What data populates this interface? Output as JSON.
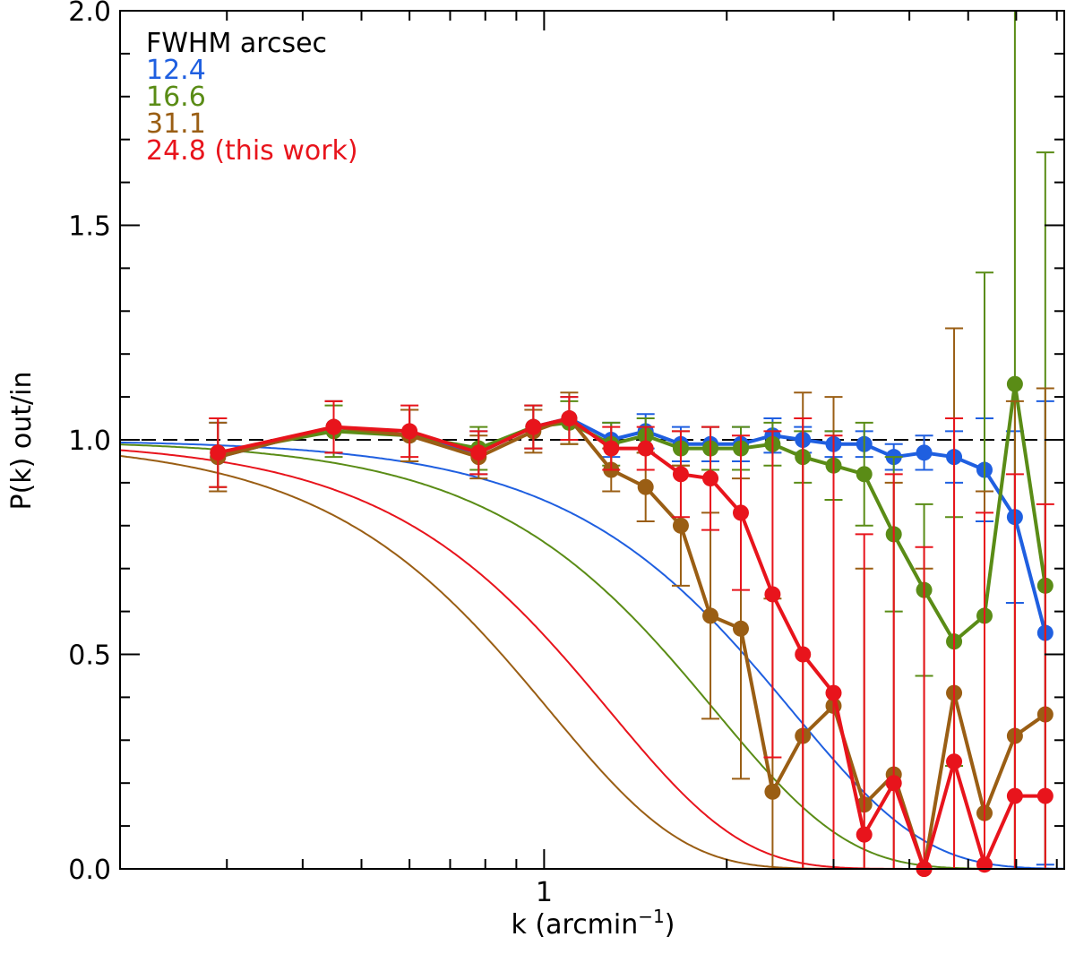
{
  "chart_data": {
    "type": "line",
    "xscale": "log",
    "xlim": [
      0.2,
      7.2
    ],
    "ylim": [
      0.0,
      2.0
    ],
    "xlabel_main": "k (arcmin",
    "xlabel_sup": "−1",
    "xlabel_close": ")",
    "ylabel": "P(k) out/in",
    "x_tick_labels": [
      "1"
    ],
    "y_tick_labels": [
      "0.0",
      "0.5",
      "1.0",
      "1.5",
      "2.0"
    ],
    "y_ticks": [
      0.0,
      0.5,
      1.0,
      1.5,
      2.0
    ],
    "reference_line": 1.0,
    "legend": {
      "title": "FWHM arcsec",
      "entries": [
        {
          "label": "12.4",
          "color": "#1f5fe0"
        },
        {
          "label": "16.6",
          "color": "#5a8c16"
        },
        {
          "label": "31.1",
          "color": "#9a5e14"
        },
        {
          "label": "24.8 (this work)",
          "color": "#e8141c"
        }
      ]
    },
    "series": [
      {
        "name": "12.4",
        "color": "#1f5fe0",
        "fwhm": 12.4,
        "points": [
          [
            0.29,
            0.96,
            0.08
          ],
          [
            0.45,
            1.03,
            0.06
          ],
          [
            0.6,
            1.01,
            0.06
          ],
          [
            0.78,
            0.97,
            0.05
          ],
          [
            0.96,
            1.03,
            0.05
          ],
          [
            1.1,
            1.05,
            0.05
          ],
          [
            1.29,
            1.0,
            0.04
          ],
          [
            1.47,
            1.02,
            0.04
          ],
          [
            1.68,
            0.99,
            0.04
          ],
          [
            1.88,
            0.99,
            0.04
          ],
          [
            2.11,
            0.99,
            0.04
          ],
          [
            2.38,
            1.01,
            0.04
          ],
          [
            2.67,
            1.0,
            0.03
          ],
          [
            3.0,
            0.99,
            0.03
          ],
          [
            3.37,
            0.99,
            0.03
          ],
          [
            3.77,
            0.96,
            0.03
          ],
          [
            4.23,
            0.97,
            0.04
          ],
          [
            4.74,
            0.96,
            0.06
          ],
          [
            5.32,
            0.93,
            0.12
          ],
          [
            5.97,
            0.82,
            0.2
          ],
          [
            6.7,
            0.55,
            0.54
          ]
        ]
      },
      {
        "name": "16.6",
        "color": "#5a8c16",
        "fwhm": 16.6,
        "points": [
          [
            0.29,
            0.97,
            0.08
          ],
          [
            0.45,
            1.02,
            0.06
          ],
          [
            0.6,
            1.01,
            0.06
          ],
          [
            0.78,
            0.98,
            0.05
          ],
          [
            0.96,
            1.03,
            0.05
          ],
          [
            1.1,
            1.04,
            0.05
          ],
          [
            1.29,
            0.99,
            0.05
          ],
          [
            1.47,
            1.01,
            0.04
          ],
          [
            1.68,
            0.98,
            0.04
          ],
          [
            1.88,
            0.98,
            0.05
          ],
          [
            2.11,
            0.98,
            0.05
          ],
          [
            2.38,
            0.99,
            0.05
          ],
          [
            2.67,
            0.96,
            0.06
          ],
          [
            3.0,
            0.94,
            0.08
          ],
          [
            3.37,
            0.92,
            0.12
          ],
          [
            3.77,
            0.78,
            0.18
          ],
          [
            4.23,
            0.65,
            0.2
          ],
          [
            4.74,
            0.53,
            0.29
          ],
          [
            5.32,
            0.59,
            0.8
          ],
          [
            5.97,
            1.13,
            1.4
          ],
          [
            6.7,
            0.66,
            1.01
          ]
        ]
      },
      {
        "name": "31.1",
        "color": "#9a5e14",
        "fwhm": 31.1,
        "points": [
          [
            0.29,
            0.96,
            0.08
          ],
          [
            0.45,
            1.03,
            0.06
          ],
          [
            0.6,
            1.01,
            0.06
          ],
          [
            0.78,
            0.96,
            0.05
          ],
          [
            0.96,
            1.02,
            0.05
          ],
          [
            1.1,
            1.05,
            0.06
          ],
          [
            1.29,
            0.93,
            0.05
          ],
          [
            1.47,
            0.89,
            0.08
          ],
          [
            1.68,
            0.8,
            0.14
          ],
          [
            1.88,
            0.59,
            0.24
          ],
          [
            2.11,
            0.56,
            0.35
          ],
          [
            2.38,
            0.18,
            0.45
          ],
          [
            2.67,
            0.31,
            0.8
          ],
          [
            3.0,
            0.38,
            0.72
          ],
          [
            3.37,
            0.15,
            0.55
          ],
          [
            3.77,
            0.22,
            0.68
          ],
          [
            4.23,
            0.0,
            0.7
          ],
          [
            4.74,
            0.41,
            0.85
          ],
          [
            5.32,
            0.13,
            0.75
          ],
          [
            5.97,
            0.31,
            0.78
          ],
          [
            6.7,
            0.36,
            0.76
          ]
        ]
      },
      {
        "name": "24.8 (this work)",
        "color": "#e8141c",
        "fwhm": 24.8,
        "points": [
          [
            0.29,
            0.97,
            0.08
          ],
          [
            0.45,
            1.03,
            0.06
          ],
          [
            0.6,
            1.02,
            0.06
          ],
          [
            0.78,
            0.97,
            0.05
          ],
          [
            0.96,
            1.03,
            0.05
          ],
          [
            1.1,
            1.05,
            0.05
          ],
          [
            1.29,
            0.98,
            0.05
          ],
          [
            1.47,
            0.98,
            0.05
          ],
          [
            1.68,
            0.92,
            0.1
          ],
          [
            1.88,
            0.91,
            0.12
          ],
          [
            2.11,
            0.83,
            0.18
          ],
          [
            2.38,
            0.64,
            0.38
          ],
          [
            2.67,
            0.5,
            0.55
          ],
          [
            3.0,
            0.41,
            0.6
          ],
          [
            3.37,
            0.08,
            0.7
          ],
          [
            3.77,
            0.2,
            0.72
          ],
          [
            4.23,
            0.0,
            0.75
          ],
          [
            4.74,
            0.25,
            0.8
          ],
          [
            5.32,
            0.01,
            0.82
          ],
          [
            5.97,
            0.17,
            0.75
          ],
          [
            6.7,
            0.17,
            0.68
          ]
        ]
      }
    ]
  }
}
